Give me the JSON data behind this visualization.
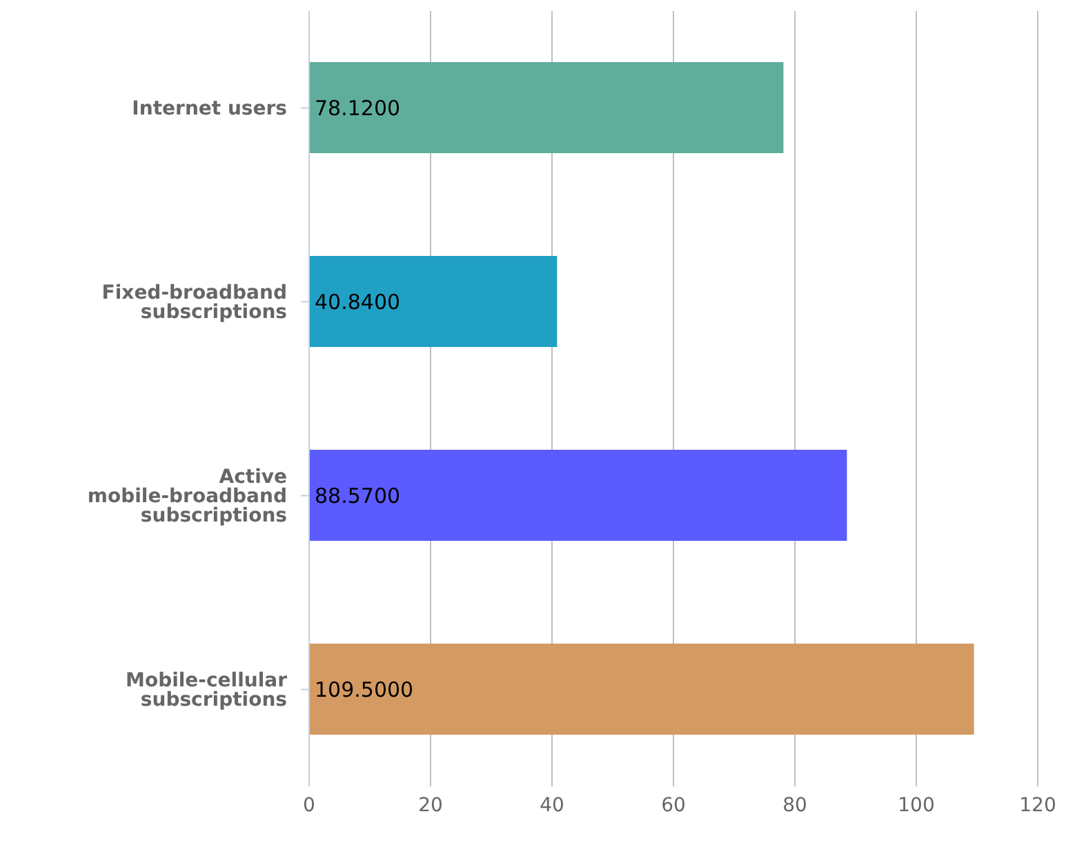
{
  "chart_data": {
    "type": "bar",
    "orientation": "horizontal",
    "categories": [
      "Internet users",
      "Fixed-broadband subscriptions",
      "Active mobile-broadband subscriptions",
      "Mobile-cellular subscriptions"
    ],
    "values": [
      78.12,
      40.84,
      88.57,
      109.5
    ],
    "value_labels": [
      "78.1200",
      "40.8400",
      "88.5700",
      "109.5000"
    ],
    "colors": [
      "#5fae9c",
      "#21a0c6",
      "#5b5bff",
      "#d49a63"
    ],
    "xlim": [
      0,
      120
    ],
    "xticks": [
      0,
      20,
      40,
      60,
      80,
      100,
      120
    ],
    "grid": "x",
    "legend": false
  }
}
